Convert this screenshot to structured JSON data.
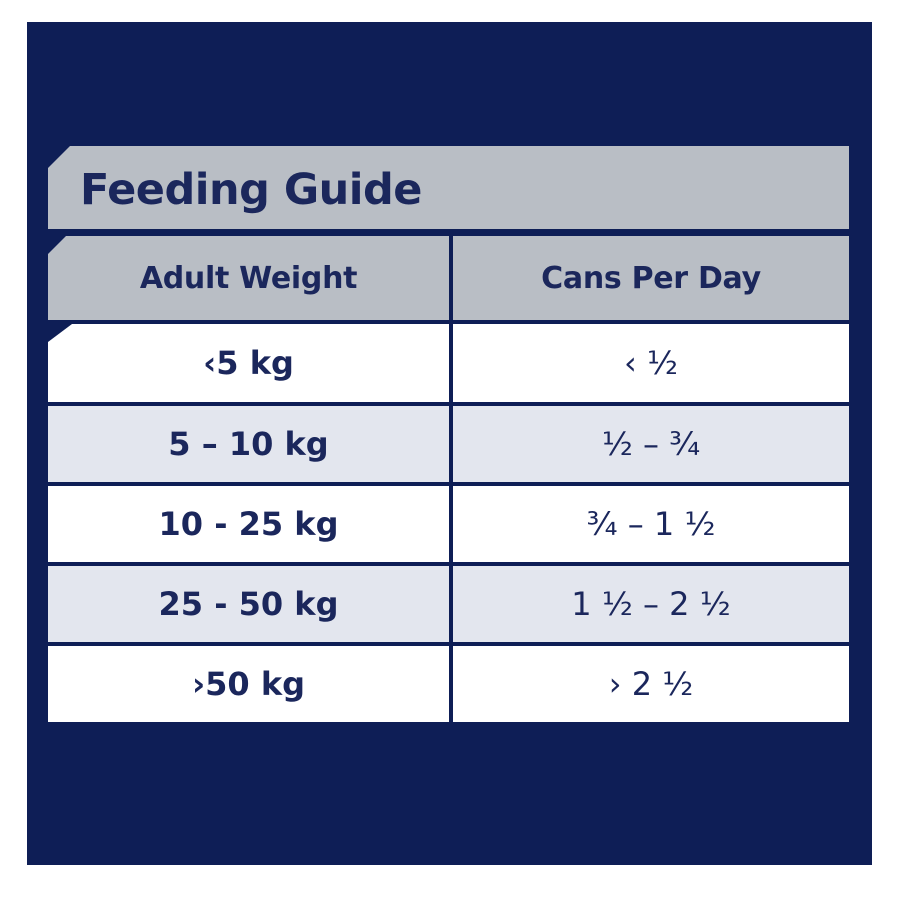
{
  "colors": {
    "background": "#0e1e56",
    "header_bg": "#b9bec5",
    "row_white": "#ffffff",
    "row_shaded": "#e3e6ee",
    "text": "#1b275c"
  },
  "title": "Feeding Guide",
  "table": {
    "headers": [
      "Adult Weight",
      "Cans Per Day"
    ],
    "rows": [
      [
        "‹5 kg",
        "‹ ½"
      ],
      [
        "5 – 10 kg",
        "½ – ¾"
      ],
      [
        "10 - 25 kg",
        "¾ – 1 ½"
      ],
      [
        "25 - 50 kg",
        "1 ½ – 2 ½"
      ],
      [
        "›50 kg",
        "› 2 ½"
      ]
    ]
  }
}
